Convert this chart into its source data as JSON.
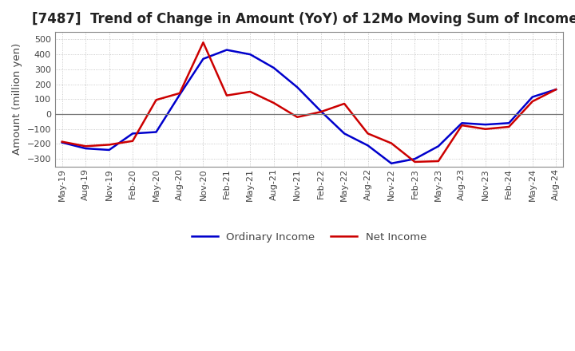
{
  "title": "[7487]  Trend of Change in Amount (YoY) of 12Mo Moving Sum of Incomes",
  "ylabel": "Amount (million yen)",
  "title_fontsize": 12,
  "label_fontsize": 9.5,
  "tick_fontsize": 8,
  "line_color_ordinary": "#0000CC",
  "line_color_net": "#CC0000",
  "legend_ordinary": "Ordinary Income",
  "legend_net": "Net Income",
  "x_labels": [
    "May-19",
    "Aug-19",
    "Nov-19",
    "Feb-20",
    "May-20",
    "Aug-20",
    "Nov-20",
    "Feb-21",
    "May-21",
    "Aug-21",
    "Nov-21",
    "Feb-22",
    "May-22",
    "Aug-22",
    "Nov-22",
    "Feb-23",
    "May-23",
    "Aug-23",
    "Nov-23",
    "Feb-24",
    "May-24",
    "Aug-24"
  ],
  "ordinary_income": [
    -190,
    -230,
    -240,
    -130,
    -120,
    130,
    370,
    430,
    400,
    310,
    180,
    20,
    -130,
    -210,
    -330,
    -300,
    -215,
    -60,
    -70,
    -60,
    115,
    165
  ],
  "net_income": [
    -185,
    -215,
    -205,
    -180,
    95,
    140,
    480,
    125,
    150,
    75,
    -20,
    15,
    70,
    -130,
    -195,
    -320,
    -315,
    -75,
    -100,
    -85,
    85,
    165
  ],
  "ylim": [
    -350,
    550
  ],
  "yticks": [
    -300,
    -200,
    -100,
    0,
    100,
    200,
    300,
    400,
    500
  ],
  "grid_color": "#BBBBBB",
  "background_color": "#FFFFFF",
  "linewidth": 1.8
}
